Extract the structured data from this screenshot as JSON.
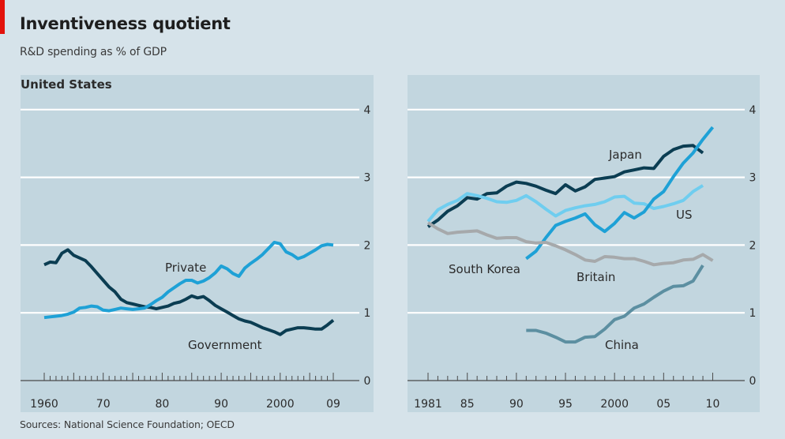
{
  "header": {
    "title": "Inventiveness quotient",
    "subtitle": "R&D spending as % of GDP"
  },
  "footer": {
    "source": "Sources: National Science Foundation; OECD"
  },
  "colors": {
    "background": "#d6e3ea",
    "panel": "#c2d6df",
    "gridline": "#ffffff",
    "accent_red": "#e3120b",
    "government": "#0b3d52",
    "private": "#1ea1d6",
    "japan": "#0b3d52",
    "us": "#6fcdef",
    "south_korea": "#1ea1d6",
    "britain": "#a6a9ab",
    "china": "#5c8fa1"
  },
  "chart_data": [
    {
      "type": "line",
      "title": "United States",
      "xlabel": "",
      "ylabel": "R&D spending as % of GDP",
      "xlim": [
        1960,
        2009
      ],
      "ylim": [
        0,
        4
      ],
      "yticks": [
        0,
        1,
        2,
        3,
        4
      ],
      "ytick_labels": [
        "0",
        "1",
        "2",
        "3",
        "4"
      ],
      "xticks": [
        1960,
        1970,
        1980,
        1990,
        2000,
        2009
      ],
      "xtick_labels": [
        "1960",
        "70",
        "80",
        "90",
        "2000",
        "09"
      ],
      "grid": true,
      "legend": "inline labels",
      "x": [
        1960,
        1961,
        1962,
        1963,
        1964,
        1965,
        1966,
        1967,
        1968,
        1969,
        1970,
        1971,
        1972,
        1973,
        1974,
        1975,
        1976,
        1977,
        1978,
        1979,
        1980,
        1981,
        1982,
        1983,
        1984,
        1985,
        1986,
        1987,
        1988,
        1989,
        1990,
        1991,
        1992,
        1993,
        1994,
        1995,
        1996,
        1997,
        1998,
        1999,
        2000,
        2001,
        2002,
        2003,
        2004,
        2005,
        2006,
        2007,
        2008,
        2009
      ],
      "series": [
        {
          "name": "Government",
          "label": "Government",
          "values": [
            1.71,
            1.75,
            1.74,
            1.88,
            1.93,
            1.85,
            1.81,
            1.77,
            1.68,
            1.58,
            1.48,
            1.38,
            1.31,
            1.2,
            1.15,
            1.13,
            1.11,
            1.09,
            1.08,
            1.06,
            1.08,
            1.1,
            1.14,
            1.16,
            1.2,
            1.25,
            1.22,
            1.24,
            1.18,
            1.11,
            1.06,
            1.01,
            0.96,
            0.91,
            0.88,
            0.86,
            0.82,
            0.78,
            0.75,
            0.72,
            0.68,
            0.74,
            0.76,
            0.78,
            0.78,
            0.77,
            0.76,
            0.76,
            0.82,
            0.89
          ]
        },
        {
          "name": "Private",
          "label": "Private",
          "values": [
            0.93,
            0.94,
            0.95,
            0.96,
            0.98,
            1.01,
            1.07,
            1.08,
            1.1,
            1.09,
            1.04,
            1.03,
            1.05,
            1.07,
            1.06,
            1.05,
            1.06,
            1.07,
            1.12,
            1.18,
            1.23,
            1.31,
            1.37,
            1.43,
            1.48,
            1.48,
            1.44,
            1.47,
            1.52,
            1.59,
            1.69,
            1.65,
            1.58,
            1.54,
            1.66,
            1.73,
            1.79,
            1.86,
            1.95,
            2.04,
            2.02,
            1.9,
            1.86,
            1.8,
            1.83,
            1.88,
            1.93,
            1.99,
            2.01,
            2.0
          ]
        }
      ]
    },
    {
      "type": "line",
      "title": "",
      "xlabel": "",
      "ylabel": "R&D spending as % of GDP",
      "xlim": [
        1981,
        2010
      ],
      "ylim": [
        0,
        4
      ],
      "yticks": [
        0,
        1,
        2,
        3,
        4
      ],
      "ytick_labels": [
        "0",
        "1",
        "2",
        "3",
        "4"
      ],
      "xticks": [
        1981,
        1985,
        1990,
        1995,
        2000,
        2005,
        2010
      ],
      "xtick_labels": [
        "1981",
        "85",
        "90",
        "95",
        "2000",
        "05",
        "10"
      ],
      "grid": true,
      "legend": "inline labels",
      "series": [
        {
          "name": "Japan",
          "label": "Japan",
          "x": [
            1981,
            1982,
            1983,
            1984,
            1985,
            1986,
            1987,
            1988,
            1989,
            1990,
            1991,
            1992,
            1993,
            1994,
            1995,
            1996,
            1997,
            1998,
            1999,
            2000,
            2001,
            2002,
            2003,
            2004,
            2005,
            2006,
            2007,
            2008,
            2009
          ],
          "values": [
            2.27,
            2.37,
            2.5,
            2.58,
            2.7,
            2.68,
            2.76,
            2.77,
            2.87,
            2.93,
            2.91,
            2.87,
            2.81,
            2.76,
            2.89,
            2.8,
            2.86,
            2.97,
            2.99,
            3.01,
            3.08,
            3.11,
            3.14,
            3.13,
            3.31,
            3.41,
            3.46,
            3.47,
            3.36
          ]
        },
        {
          "name": "US",
          "label": "US",
          "x": [
            1981,
            1982,
            1983,
            1984,
            1985,
            1986,
            1987,
            1988,
            1989,
            1990,
            1991,
            1992,
            1993,
            1994,
            1995,
            1996,
            1997,
            1998,
            1999,
            2000,
            2001,
            2002,
            2003,
            2004,
            2005,
            2006,
            2007,
            2008,
            2009
          ],
          "values": [
            2.35,
            2.52,
            2.6,
            2.66,
            2.76,
            2.73,
            2.69,
            2.64,
            2.63,
            2.66,
            2.73,
            2.64,
            2.53,
            2.43,
            2.51,
            2.55,
            2.58,
            2.6,
            2.64,
            2.71,
            2.72,
            2.62,
            2.61,
            2.54,
            2.57,
            2.61,
            2.66,
            2.79,
            2.88
          ]
        },
        {
          "name": "South Korea",
          "label": "South Korea",
          "x": [
            1991,
            1992,
            1993,
            1994,
            1995,
            1996,
            1997,
            1998,
            1999,
            2000,
            2001,
            2002,
            2003,
            2004,
            2005,
            2006,
            2007,
            2008,
            2009,
            2010
          ],
          "values": [
            1.8,
            1.91,
            2.11,
            2.29,
            2.35,
            2.4,
            2.46,
            2.3,
            2.2,
            2.32,
            2.48,
            2.4,
            2.49,
            2.68,
            2.79,
            3.01,
            3.21,
            3.36,
            3.56,
            3.74
          ]
        },
        {
          "name": "Britain",
          "label": "Britain",
          "x": [
            1981,
            1982,
            1983,
            1984,
            1985,
            1986,
            1987,
            1988,
            1989,
            1990,
            1991,
            1992,
            1993,
            1994,
            1995,
            1996,
            1997,
            1998,
            1999,
            2000,
            2001,
            2002,
            2003,
            2004,
            2005,
            2006,
            2007,
            2008,
            2009,
            2010
          ],
          "values": [
            2.33,
            2.24,
            2.17,
            2.19,
            2.2,
            2.21,
            2.15,
            2.1,
            2.11,
            2.11,
            2.05,
            2.03,
            2.04,
            1.99,
            1.93,
            1.86,
            1.78,
            1.76,
            1.83,
            1.82,
            1.8,
            1.8,
            1.76,
            1.71,
            1.73,
            1.74,
            1.78,
            1.79,
            1.86,
            1.77
          ]
        },
        {
          "name": "China",
          "label": "China",
          "x": [
            1991,
            1992,
            1993,
            1994,
            1995,
            1996,
            1997,
            1998,
            1999,
            2000,
            2001,
            2002,
            2003,
            2004,
            2005,
            2006,
            2007,
            2008,
            2009
          ],
          "values": [
            0.74,
            0.74,
            0.7,
            0.64,
            0.57,
            0.57,
            0.64,
            0.65,
            0.76,
            0.9,
            0.95,
            1.07,
            1.13,
            1.23,
            1.32,
            1.39,
            1.4,
            1.47,
            1.7
          ]
        }
      ]
    }
  ]
}
